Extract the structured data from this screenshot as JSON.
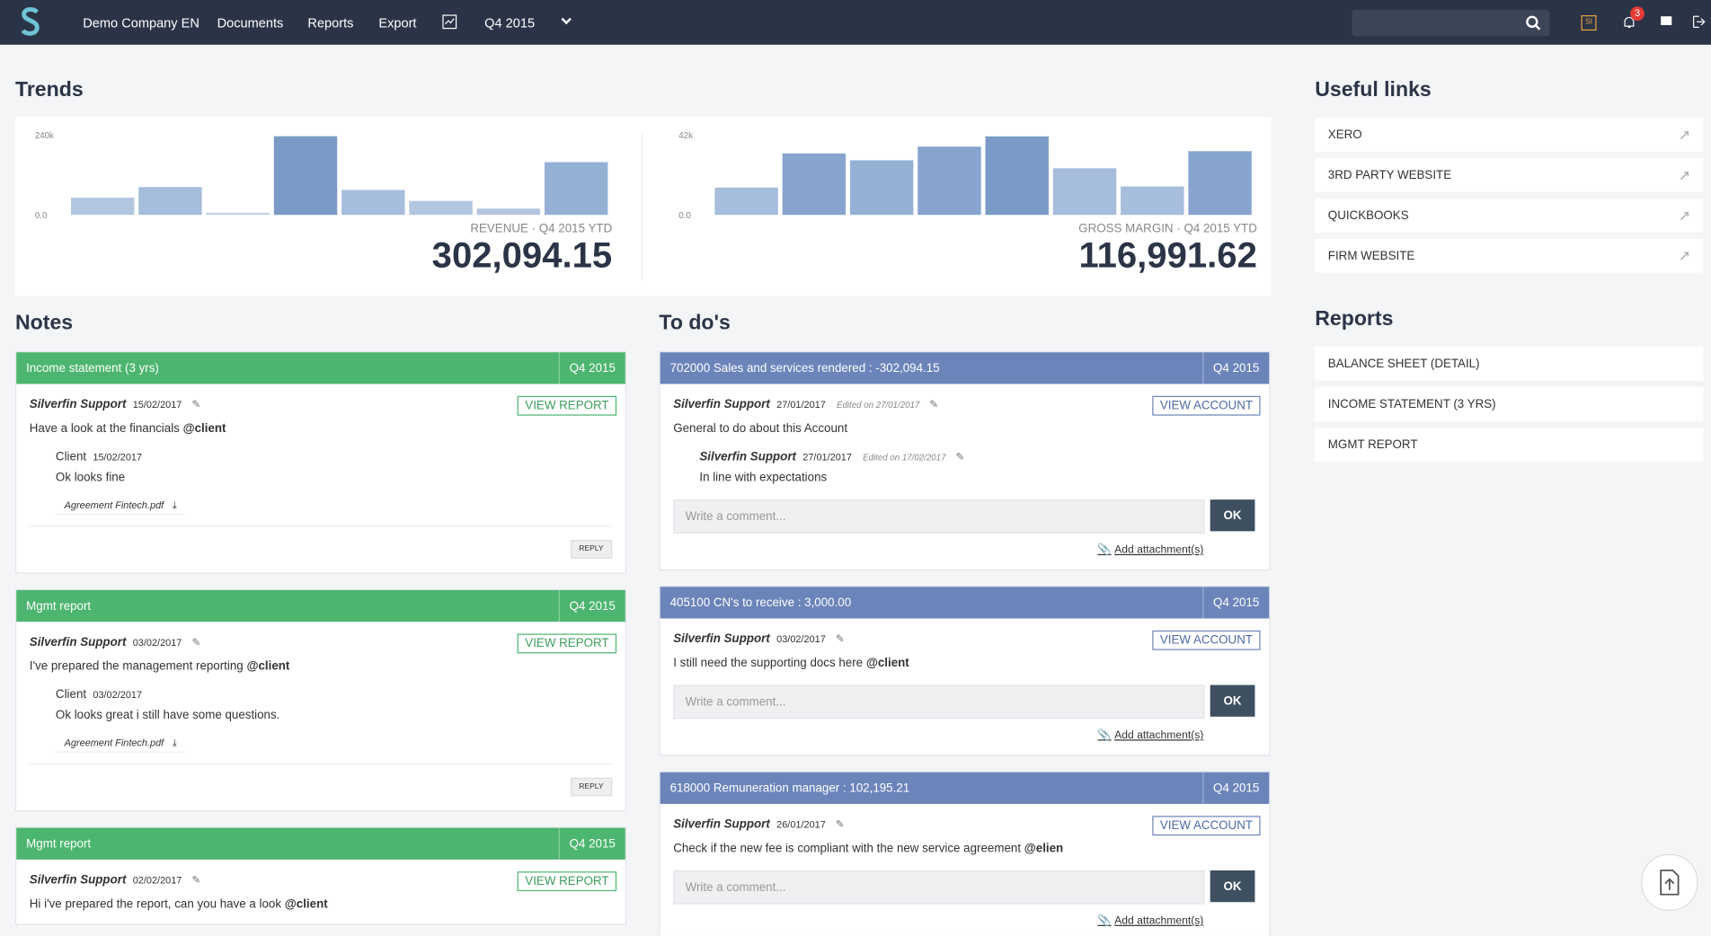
{
  "nav": {
    "items": [
      "Demo Company EN",
      "Documents",
      "Reports",
      "Export"
    ],
    "period": "Q4 2015",
    "notifications": 3
  },
  "trends": {
    "title": "Trends",
    "charts": [
      {
        "type": "bar",
        "values": [
          52000,
          84000,
          6500,
          237000,
          75000,
          42000,
          19000,
          159000
        ],
        "colors": [
          "#b3c6e0",
          "#a6bddb",
          "#c4d3e7",
          "#7b9bc6",
          "#a6bddb",
          "#b3c6e0",
          "#b3c6e0",
          "#95b0d5"
        ],
        "ylim": [
          0,
          240000
        ],
        "yticks": [
          {
            "value": 0,
            "label": "0.0"
          },
          {
            "value": 240000,
            "label": "240k"
          }
        ],
        "label": "REVENUE · Q4 2015 YTD",
        "total": "302,094.15"
      },
      {
        "type": "bar",
        "values": [
          14400,
          32400,
          28800,
          36000,
          41400,
          24600,
          15000,
          33600
        ],
        "colors": [
          "#a6bddb",
          "#86a4cd",
          "#95b0d5",
          "#86a4cd",
          "#7b9bc6",
          "#a6bddb",
          "#a6bddb",
          "#86a4cd"
        ],
        "ylim": [
          0,
          42000
        ],
        "yticks": [
          {
            "value": 0,
            "label": "0.0"
          },
          {
            "value": 42000,
            "label": "42k"
          }
        ],
        "label": "GROSS MARGIN · Q4 2015 YTD",
        "total": "116,991.62"
      }
    ]
  },
  "notes": {
    "title": "Notes",
    "button": "VIEW REPORT",
    "reply_button": "REPLY",
    "cards": [
      {
        "title": "Income statement (3 yrs)",
        "period": "Q4 2015",
        "author": "Silverfin Support",
        "date": "15/02/2017",
        "text": "Have a look at the financials",
        "mention": "@client",
        "reply": {
          "author": "Client",
          "date": "15/02/2017",
          "text": "Ok looks fine",
          "attachment": "Agreement Fintech.pdf"
        }
      },
      {
        "title": "Mgmt report",
        "period": "Q4 2015",
        "author": "Silverfin Support",
        "date": "03/02/2017",
        "text": "I've prepared the management reporting",
        "mention": "@client",
        "reply": {
          "author": "Client",
          "date": "03/02/2017",
          "text": "Ok looks great i still have some questions.",
          "attachment": "Agreement Fintech.pdf"
        }
      },
      {
        "title": "Mgmt report",
        "period": "Q4 2015",
        "author": "Silverfin Support",
        "date": "02/02/2017",
        "text": "Hi i've prepared the report, can you have a look",
        "mention": "@client"
      }
    ]
  },
  "todos": {
    "title": "To do's",
    "button": "VIEW ACCOUNT",
    "placeholder": "Write a comment...",
    "ok": "OK",
    "attach": "Add attachment(s)",
    "cards": [
      {
        "title": "702000 Sales and services rendered : -302,094.15",
        "period": "Q4 2015",
        "author": "Silverfin Support",
        "date": "27/01/2017",
        "edited": "Edited on 27/01/2017",
        "text": "General to do about this Account",
        "reply": {
          "author": "Silverfin Support",
          "date": "27/01/2017",
          "edited": "Edited on 17/02/2017",
          "text": "In line with expectations"
        }
      },
      {
        "title": "405100 CN's to receive : 3,000.00",
        "period": "Q4 2015",
        "author": "Silverfin Support",
        "date": "03/02/2017",
        "text": "I still need the supporting docs here",
        "mention": "@client"
      },
      {
        "title": "618000 Remuneration manager : 102,195.21",
        "period": "Q4 2015",
        "author": "Silverfin Support",
        "date": "26/01/2017",
        "text": "Check if the new fee is compliant with the new service agreement",
        "mention": "@elien"
      }
    ]
  },
  "useful_links": {
    "title": "Useful links",
    "items": [
      "XERO",
      "3RD PARTY WEBSITE",
      "QUICKBOOKS",
      "FIRM WEBSITE"
    ]
  },
  "reports": {
    "title": "Reports",
    "items": [
      "BALANCE SHEET (DETAIL)",
      "INCOME STATEMENT (3 YRS)",
      "MGMT REPORT"
    ]
  }
}
